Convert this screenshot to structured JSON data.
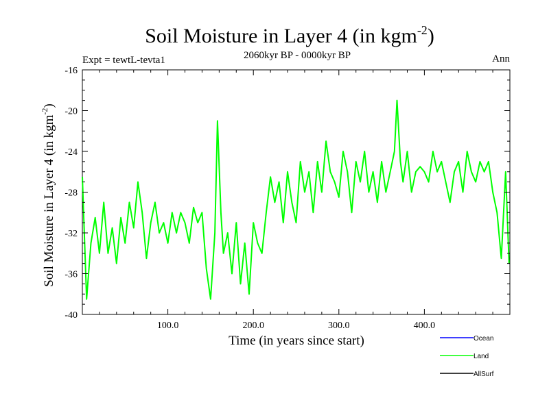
{
  "chart_data": {
    "type": "line",
    "title": "Soil Moisture in Layer 4 (in kgm",
    "title_sup": "-2",
    "title_close": ")",
    "subtitle": "2060kyr BP - 0000kyr BP",
    "left_label": "Expt = tewtL-tevta1",
    "right_label": "Ann",
    "xlabel": "Time (in years since start)",
    "ylabel": "Soil Moisture in Layer 4 (in kgm",
    "ylabel_sup": "-2",
    "ylabel_close": ")",
    "xlim": [
      0,
      500
    ],
    "ylim": [
      -40,
      -16
    ],
    "x_ticks": [
      {
        "value": 100,
        "label": "100.0"
      },
      {
        "value": 200,
        "label": "200.0"
      },
      {
        "value": 300,
        "label": "300.0"
      },
      {
        "value": 400,
        "label": "400.0"
      }
    ],
    "y_ticks": [
      {
        "value": -16,
        "label": "-16"
      },
      {
        "value": -20,
        "label": "-20"
      },
      {
        "value": -24,
        "label": "-24"
      },
      {
        "value": -28,
        "label": "-28"
      },
      {
        "value": -32,
        "label": "-32"
      },
      {
        "value": -36,
        "label": "-36"
      },
      {
        "value": -40,
        "label": "-40"
      }
    ],
    "legend": [
      {
        "name": "Ocean",
        "color": "#0000ff"
      },
      {
        "name": "Land",
        "color": "#00ff00"
      },
      {
        "name": "AllSurf",
        "color": "#000000"
      }
    ],
    "series": [
      {
        "name": "Land",
        "color": "#00ff00",
        "x": [
          0,
          5,
          10,
          15,
          20,
          25,
          30,
          35,
          40,
          45,
          50,
          55,
          60,
          65,
          70,
          75,
          80,
          85,
          90,
          95,
          100,
          105,
          110,
          115,
          120,
          125,
          130,
          135,
          140,
          145,
          150,
          155,
          158,
          162,
          165,
          170,
          175,
          180,
          185,
          190,
          195,
          200,
          205,
          210,
          215,
          220,
          225,
          230,
          235,
          240,
          245,
          250,
          255,
          260,
          265,
          270,
          275,
          280,
          285,
          290,
          295,
          300,
          305,
          310,
          315,
          320,
          325,
          330,
          335,
          340,
          345,
          350,
          355,
          360,
          365,
          368,
          372,
          375,
          380,
          385,
          390,
          395,
          400,
          405,
          410,
          415,
          420,
          425,
          430,
          435,
          440,
          445,
          450,
          455,
          460,
          465,
          470,
          475,
          480,
          485,
          490,
          495,
          499
        ],
        "values": [
          -26.5,
          -38.5,
          -33,
          -30.5,
          -34,
          -29,
          -34,
          -31.5,
          -35,
          -30.5,
          -33,
          -29,
          -31.5,
          -27,
          -30,
          -34.5,
          -31,
          -29,
          -32,
          -31,
          -33,
          -30,
          -32,
          -30,
          -31,
          -33,
          -29.5,
          -31,
          -30,
          -35.5,
          -38.5,
          -32,
          -21,
          -30,
          -34,
          -32,
          -36,
          -31,
          -37,
          -33,
          -38,
          -31,
          -33,
          -34,
          -30,
          -26.5,
          -29,
          -27,
          -31,
          -26,
          -29,
          -31,
          -25,
          -28,
          -26,
          -30,
          -25,
          -28,
          -23,
          -26,
          -27,
          -28.5,
          -24,
          -26,
          -30,
          -25,
          -27,
          -24,
          -28,
          -26,
          -29,
          -25,
          -28,
          -26,
          -24,
          -19,
          -25,
          -27,
          -24,
          -28,
          -26,
          -25.5,
          -26,
          -27,
          -24,
          -26,
          -25,
          -27,
          -29,
          -26,
          -25,
          -28,
          -24,
          -26,
          -27,
          -25,
          -26,
          -25,
          -28,
          -30,
          -34.5,
          -26,
          -35
        ]
      }
    ]
  }
}
